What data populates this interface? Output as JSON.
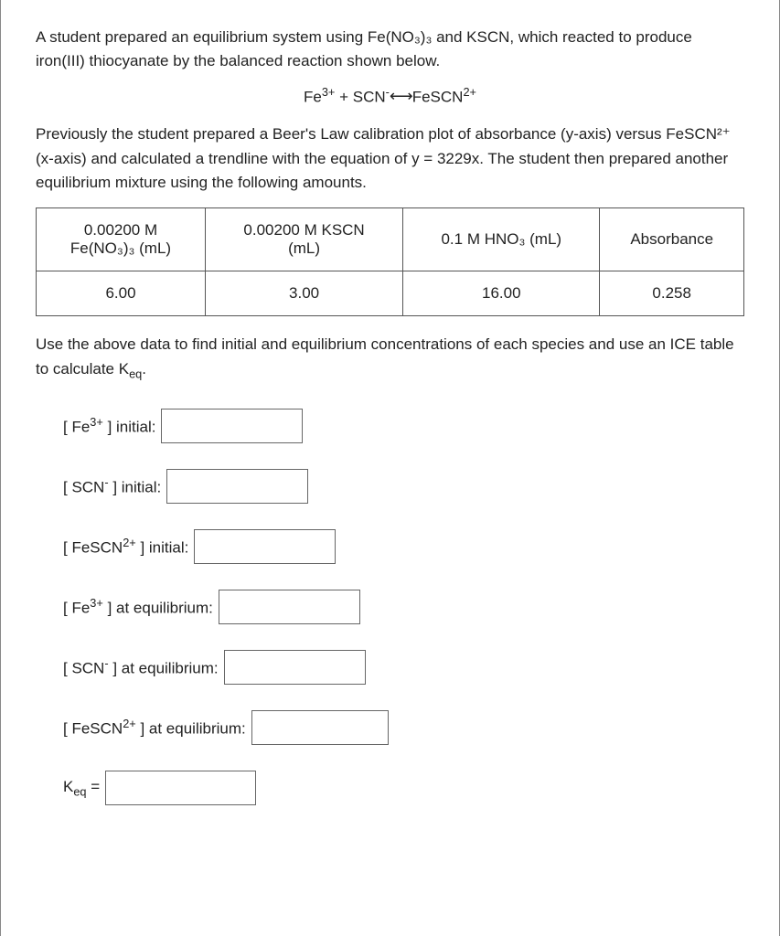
{
  "intro": {
    "p1": "A student prepared an equilibrium system using Fe(NO₃)₃ and KSCN, which reacted to produce iron(III) thiocyanate by the balanced reaction shown below.",
    "equation_left": "Fe",
    "equation_sup1": "3+",
    "equation_mid1": " + SCN",
    "equation_sup2": "-",
    "equation_arrow": " ⟷ ",
    "equation_right1": "FeSCN",
    "equation_sup3": "2+",
    "p2": "Previously the student prepared a Beer's Law calibration plot of absorbance (y-axis) versus FeSCN²⁺ (x-axis) and calculated a trendline with the equation of y = 3229x. The student then prepared another equilibrium mixture using the following amounts."
  },
  "table": {
    "headers": {
      "col1_line1": "0.00200 M",
      "col1_line2": "Fe(NO₃)₃ (mL)",
      "col2_line1": "0.00200 M KSCN",
      "col2_line2": "(mL)",
      "col3": "0.1 M HNO₃ (mL)",
      "col4": "Absorbance"
    },
    "row": {
      "c1": "6.00",
      "c2": "3.00",
      "c3": "16.00",
      "c4": "0.258"
    }
  },
  "instruction": "Use the above data to find initial and equilibrium concentrations of each species and use an ICE table to calculate K",
  "instruction_sub": "eq",
  "instruction_end": ".",
  "fields": {
    "fe_init_pre": "[ Fe",
    "fe_init_sup": "3+",
    "fe_init_post": " ] initial:",
    "scn_init_pre": "[ SCN",
    "scn_init_sup": "-",
    "scn_init_post": " ] initial:",
    "fescn_init_pre": "[ FeSCN",
    "fescn_init_sup": "2+",
    "fescn_init_post": " ] initial:",
    "fe_eq_pre": "[ Fe",
    "fe_eq_sup": "3+",
    "fe_eq_post": " ] at equilibrium:",
    "scn_eq_pre": "[ SCN",
    "scn_eq_sup": "-",
    "scn_eq_post": " ] at equilibrium:",
    "fescn_eq_pre": "[ FeSCN",
    "fescn_eq_sup": "2+",
    "fescn_eq_post": " ] at equilibrium:",
    "keq_pre": "K",
    "keq_sub": "eq",
    "keq_post": " ="
  }
}
